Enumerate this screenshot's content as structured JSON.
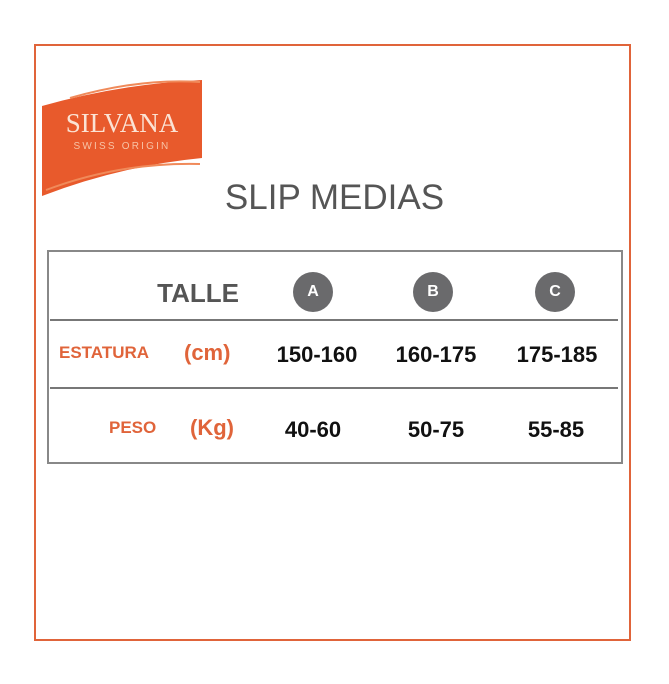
{
  "logo": {
    "brand": "SILVANA",
    "tagline": "SWISS ORIGIN",
    "color": "#e85a2c"
  },
  "title": "SLIP MEDIAS",
  "table": {
    "header_label": "TALLE",
    "sizes": [
      "A",
      "B",
      "C"
    ],
    "rows": [
      {
        "label": "ESTATURA",
        "unit": "(cm)",
        "values": [
          "150-160",
          "160-175",
          "175-185"
        ]
      },
      {
        "label": "PESO",
        "unit": "(Kg)",
        "values": [
          "40-60",
          "50-75",
          "55-85"
        ]
      }
    ]
  },
  "colors": {
    "accent": "#e0643a",
    "badge": "#6a6a6c"
  }
}
